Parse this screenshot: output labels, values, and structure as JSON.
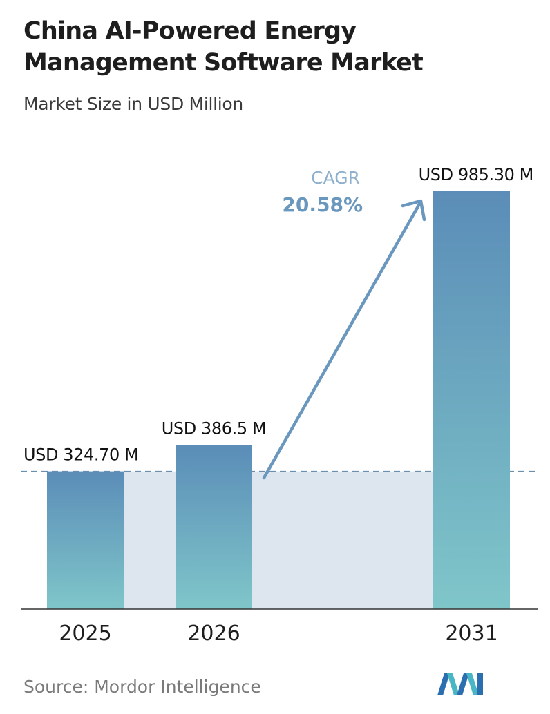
{
  "header": {
    "title": "China AI-Powered Energy Management Software Market",
    "subtitle": "Market Size in USD Million"
  },
  "chart_data": {
    "type": "bar",
    "title": "China AI-Powered Energy Management Software Market",
    "subtitle": "Market Size in USD Million",
    "categories": [
      "2025",
      "2026",
      "2031"
    ],
    "values": [
      324.7,
      386.5,
      985.3
    ],
    "value_labels": [
      "USD 324.70 M",
      "USD 386.5 M",
      "USD 985.30 M"
    ],
    "ylim": [
      0,
      985.3
    ],
    "grid": false,
    "annotation": {
      "label": "CAGR",
      "value": "20.58%"
    },
    "colors": {
      "bar_top": "#5b8db8",
      "bar_bottom": "#7fc6c9",
      "band": "#dde6ef",
      "reference_line": "#6b8fae",
      "arrow": "#6a97bd",
      "cagr_label": "#8fb0cc",
      "cagr_value": "#6a97bd",
      "axis": "#333333"
    }
  },
  "footer": {
    "source": "Source: Mordor Intelligence",
    "logo": "mordor-intelligence-logo"
  }
}
